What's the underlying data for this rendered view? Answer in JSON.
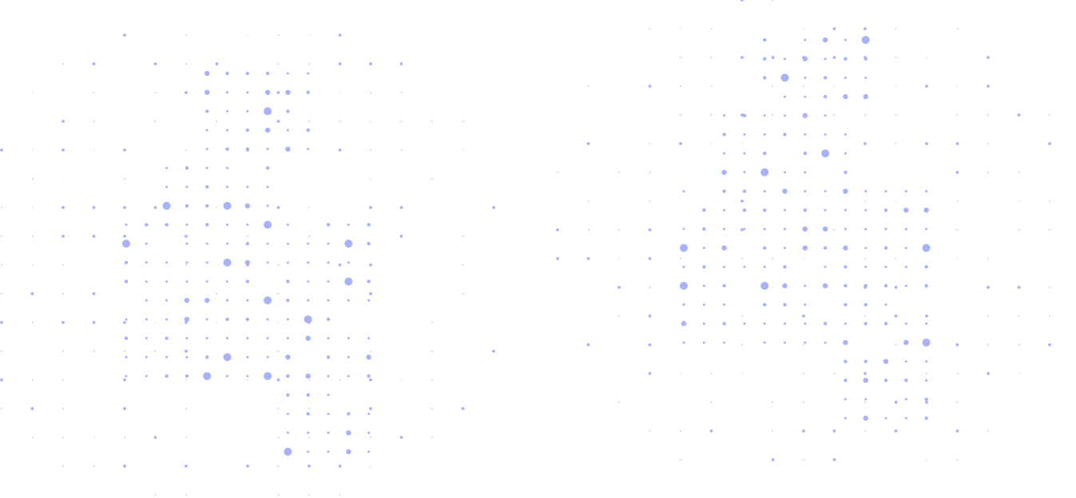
{
  "background": {
    "color": "#ffffff",
    "dot_color": "#a8b2f8",
    "pattern": "dot-grid"
  }
}
